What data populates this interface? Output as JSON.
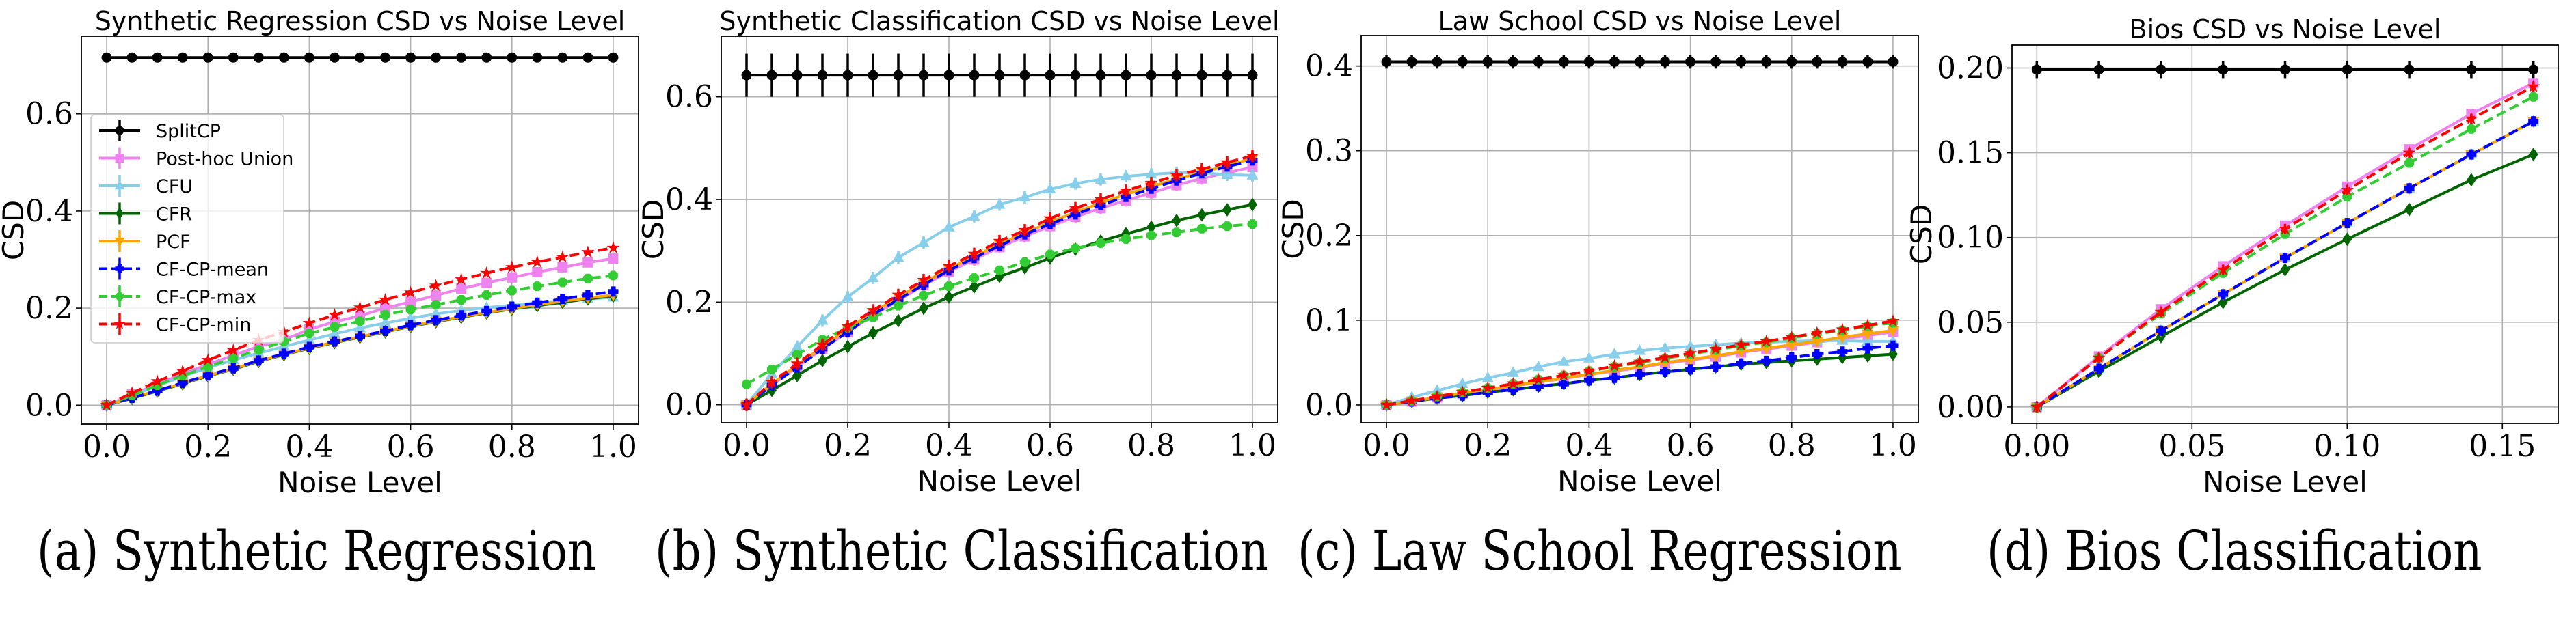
{
  "chart_data": [
    {
      "type": "line",
      "title": "Synthetic Regression CSD vs Noise Level",
      "xlabel": "Noise Level",
      "ylabel": "CSD",
      "xlim": [
        -0.05,
        1.05
      ],
      "ylim": [
        -0.039,
        0.76
      ],
      "xticks": [
        0.0,
        0.2,
        0.4,
        0.6,
        0.8,
        1.0
      ],
      "xtick_labels": [
        "0.0",
        "0.2",
        "0.4",
        "0.6",
        "0.8",
        "1.0"
      ],
      "yticks": [
        0.0,
        0.2,
        0.4,
        0.6
      ],
      "ytick_labels": [
        "0.0",
        "0.2",
        "0.4",
        "0.6"
      ],
      "grid": true,
      "legend": "center-left",
      "caption": "(a) Synthetic Regression",
      "x": [
        0.0,
        0.05,
        0.1,
        0.15,
        0.2,
        0.25,
        0.3,
        0.35,
        0.4,
        0.45,
        0.5,
        0.55,
        0.6,
        0.65,
        0.7,
        0.75,
        0.8,
        0.85,
        0.9,
        0.95,
        1.0
      ],
      "series": [
        {
          "name": "SplitCP",
          "err": 0.004,
          "values": [
            0.716,
            0.716,
            0.716,
            0.716,
            0.716,
            0.716,
            0.716,
            0.716,
            0.716,
            0.716,
            0.716,
            0.716,
            0.716,
            0.716,
            0.716,
            0.716,
            0.716,
            0.716,
            0.716,
            0.716,
            0.716
          ]
        },
        {
          "name": "Post-hoc Union",
          "err": 0.003,
          "values": [
            0.0,
            0.022,
            0.043,
            0.064,
            0.084,
            0.103,
            0.121,
            0.135,
            0.156,
            0.172,
            0.184,
            0.2,
            0.213,
            0.226,
            0.24,
            0.252,
            0.263,
            0.274,
            0.284,
            0.294,
            0.302
          ]
        },
        {
          "name": "CFU",
          "err": 0.003,
          "values": [
            0.0,
            0.02,
            0.04,
            0.059,
            0.077,
            0.093,
            0.107,
            0.121,
            0.134,
            0.147,
            0.159,
            0.169,
            0.179,
            0.188,
            0.195,
            0.201,
            0.206,
            0.211,
            0.215,
            0.219,
            0.222
          ]
        },
        {
          "name": "CFR",
          "err": 0.002,
          "values": [
            0.0,
            0.014,
            0.029,
            0.044,
            0.06,
            0.074,
            0.09,
            0.104,
            0.117,
            0.129,
            0.14,
            0.151,
            0.162,
            0.172,
            0.181,
            0.19,
            0.198,
            0.205,
            0.212,
            0.219,
            0.225
          ]
        },
        {
          "name": "PCF",
          "err": 0.002,
          "values": [
            0.0,
            0.015,
            0.03,
            0.045,
            0.061,
            0.075,
            0.091,
            0.105,
            0.118,
            0.13,
            0.141,
            0.152,
            0.163,
            0.173,
            0.182,
            0.191,
            0.199,
            0.207,
            0.214,
            0.221,
            0.227
          ]
        },
        {
          "name": "CF-CP-mean",
          "err": 0.003,
          "values": [
            0.0,
            0.015,
            0.03,
            0.046,
            0.062,
            0.076,
            0.092,
            0.106,
            0.12,
            0.131,
            0.142,
            0.153,
            0.165,
            0.175,
            0.185,
            0.194,
            0.203,
            0.211,
            0.219,
            0.227,
            0.234
          ]
        },
        {
          "name": "CF-CP-max",
          "err": 0.003,
          "values": [
            0.0,
            0.02,
            0.041,
            0.061,
            0.079,
            0.097,
            0.114,
            0.131,
            0.148,
            0.161,
            0.173,
            0.186,
            0.197,
            0.207,
            0.217,
            0.227,
            0.236,
            0.245,
            0.253,
            0.261,
            0.267
          ]
        },
        {
          "name": "CF-CP-min",
          "err": 0.003,
          "values": [
            0.0,
            0.025,
            0.049,
            0.07,
            0.093,
            0.113,
            0.134,
            0.151,
            0.169,
            0.186,
            0.201,
            0.217,
            0.232,
            0.246,
            0.259,
            0.272,
            0.284,
            0.295,
            0.305,
            0.315,
            0.324
          ]
        }
      ]
    },
    {
      "type": "line",
      "title": "Synthetic Classification CSD vs Noise Level",
      "xlabel": "Noise Level",
      "ylabel": "CSD",
      "xlim": [
        -0.05,
        1.05
      ],
      "ylim": [
        -0.035,
        0.718
      ],
      "xticks": [
        0.0,
        0.2,
        0.4,
        0.6,
        0.8,
        1.0
      ],
      "xtick_labels": [
        "0.0",
        "0.2",
        "0.4",
        "0.6",
        "0.8",
        "1.0"
      ],
      "yticks": [
        0.0,
        0.2,
        0.4,
        0.6
      ],
      "ytick_labels": [
        "0.0",
        "0.2",
        "0.4",
        "0.6"
      ],
      "grid": true,
      "legend": "none",
      "caption": "(b) Synthetic Classification",
      "x": [
        0.0,
        0.05,
        0.1,
        0.15,
        0.2,
        0.25,
        0.3,
        0.35,
        0.4,
        0.45,
        0.5,
        0.55,
        0.6,
        0.65,
        0.7,
        0.75,
        0.8,
        0.85,
        0.9,
        0.95,
        1.0
      ],
      "series": [
        {
          "name": "SplitCP",
          "err": 0.042,
          "values": [
            0.642,
            0.642,
            0.642,
            0.642,
            0.642,
            0.642,
            0.642,
            0.642,
            0.642,
            0.642,
            0.642,
            0.642,
            0.642,
            0.642,
            0.642,
            0.642,
            0.642,
            0.642,
            0.642,
            0.642,
            0.642
          ]
        },
        {
          "name": "Post-hoc Union",
          "err": 0.012,
          "values": [
            0.0,
            0.038,
            0.074,
            0.109,
            0.142,
            0.174,
            0.203,
            0.233,
            0.259,
            0.283,
            0.307,
            0.328,
            0.348,
            0.366,
            0.383,
            0.398,
            0.413,
            0.428,
            0.441,
            0.452,
            0.463
          ]
        },
        {
          "name": "CFU",
          "err": 0.012,
          "values": [
            0.0,
            0.06,
            0.113,
            0.164,
            0.21,
            0.247,
            0.287,
            0.316,
            0.346,
            0.367,
            0.39,
            0.404,
            0.42,
            0.431,
            0.439,
            0.445,
            0.449,
            0.452,
            0.452,
            0.448,
            0.447
          ]
        },
        {
          "name": "CFR",
          "err": 0.005,
          "values": [
            0.0,
            0.028,
            0.057,
            0.086,
            0.113,
            0.14,
            0.164,
            0.188,
            0.21,
            0.23,
            0.25,
            0.267,
            0.286,
            0.303,
            0.319,
            0.333,
            0.346,
            0.359,
            0.37,
            0.38,
            0.39
          ]
        },
        {
          "name": "PCF",
          "err": 0.008,
          "values": [
            0.0,
            0.041,
            0.077,
            0.113,
            0.148,
            0.18,
            0.21,
            0.238,
            0.265,
            0.289,
            0.313,
            0.334,
            0.356,
            0.375,
            0.393,
            0.41,
            0.425,
            0.44,
            0.453,
            0.466,
            0.48
          ]
        },
        {
          "name": "CF-CP-mean",
          "err": 0.008,
          "values": [
            0.0,
            0.038,
            0.073,
            0.109,
            0.142,
            0.176,
            0.205,
            0.234,
            0.262,
            0.286,
            0.31,
            0.332,
            0.352,
            0.371,
            0.389,
            0.405,
            0.421,
            0.437,
            0.451,
            0.464,
            0.476
          ]
        },
        {
          "name": "CF-CP-max",
          "err": 0.008,
          "values": [
            0.04,
            0.069,
            0.098,
            0.127,
            0.15,
            0.17,
            0.193,
            0.213,
            0.231,
            0.247,
            0.262,
            0.278,
            0.293,
            0.305,
            0.315,
            0.323,
            0.33,
            0.336,
            0.343,
            0.348,
            0.352
          ]
        },
        {
          "name": "CF-CP-min",
          "err": 0.012,
          "values": [
            0.0,
            0.044,
            0.08,
            0.117,
            0.153,
            0.184,
            0.214,
            0.243,
            0.27,
            0.294,
            0.319,
            0.34,
            0.363,
            0.383,
            0.4,
            0.417,
            0.432,
            0.447,
            0.459,
            0.472,
            0.485
          ]
        }
      ]
    },
    {
      "type": "line",
      "title": "Law School CSD vs Noise Level",
      "xlabel": "Noise Level",
      "ylabel": "CSD",
      "xlim": [
        -0.05,
        1.05
      ],
      "ylim": [
        -0.021,
        0.436
      ],
      "xticks": [
        0.0,
        0.2,
        0.4,
        0.6,
        0.8,
        1.0
      ],
      "xtick_labels": [
        "0.0",
        "0.2",
        "0.4",
        "0.6",
        "0.8",
        "1.0"
      ],
      "yticks": [
        0.0,
        0.1,
        0.2,
        0.3,
        0.4
      ],
      "ytick_labels": [
        "0.0",
        "0.1",
        "0.2",
        "0.3",
        "0.4"
      ],
      "grid": true,
      "legend": "none",
      "caption": "(c) Law School Regression",
      "x": [
        0.0,
        0.05,
        0.1,
        0.15,
        0.2,
        0.25,
        0.3,
        0.35,
        0.4,
        0.45,
        0.5,
        0.55,
        0.6,
        0.65,
        0.7,
        0.75,
        0.8,
        0.85,
        0.9,
        0.95,
        1.0
      ],
      "series": [
        {
          "name": "SplitCP",
          "err": 0.008,
          "values": [
            0.405,
            0.405,
            0.405,
            0.405,
            0.405,
            0.405,
            0.405,
            0.405,
            0.405,
            0.405,
            0.405,
            0.405,
            0.405,
            0.405,
            0.405,
            0.405,
            0.405,
            0.405,
            0.405,
            0.405,
            0.405
          ]
        },
        {
          "name": "Post-hoc Union",
          "err": 0.002,
          "values": [
            0.0,
            0.004,
            0.009,
            0.013,
            0.018,
            0.022,
            0.027,
            0.031,
            0.036,
            0.04,
            0.044,
            0.049,
            0.053,
            0.057,
            0.062,
            0.066,
            0.07,
            0.074,
            0.078,
            0.082,
            0.086
          ]
        },
        {
          "name": "CFU",
          "err": 0.001,
          "values": [
            0.0,
            0.009,
            0.017,
            0.025,
            0.032,
            0.038,
            0.045,
            0.051,
            0.055,
            0.06,
            0.064,
            0.067,
            0.069,
            0.071,
            0.073,
            0.074,
            0.075,
            0.076,
            0.076,
            0.075,
            0.075
          ]
        },
        {
          "name": "CFR",
          "err": 0.001,
          "values": [
            0.0,
            0.004,
            0.008,
            0.011,
            0.015,
            0.018,
            0.022,
            0.025,
            0.029,
            0.032,
            0.036,
            0.039,
            0.042,
            0.045,
            0.048,
            0.05,
            0.052,
            0.054,
            0.056,
            0.058,
            0.06
          ]
        },
        {
          "name": "PCF",
          "err": 0.002,
          "values": [
            0.0,
            0.004,
            0.009,
            0.014,
            0.018,
            0.023,
            0.027,
            0.032,
            0.036,
            0.041,
            0.045,
            0.05,
            0.054,
            0.058,
            0.063,
            0.067,
            0.071,
            0.075,
            0.08,
            0.084,
            0.088
          ]
        },
        {
          "name": "CF-CP-mean",
          "err": 0.002,
          "values": [
            0.0,
            0.004,
            0.008,
            0.011,
            0.015,
            0.018,
            0.022,
            0.025,
            0.029,
            0.032,
            0.036,
            0.039,
            0.042,
            0.045,
            0.049,
            0.052,
            0.056,
            0.06,
            0.063,
            0.067,
            0.07
          ]
        },
        {
          "name": "CF-CP-max",
          "err": 0.002,
          "values": [
            0.0,
            0.005,
            0.01,
            0.015,
            0.02,
            0.025,
            0.03,
            0.035,
            0.04,
            0.045,
            0.05,
            0.055,
            0.06,
            0.065,
            0.07,
            0.074,
            0.079,
            0.084,
            0.088,
            0.093,
            0.097
          ]
        },
        {
          "name": "CF-CP-min",
          "err": 0.002,
          "values": [
            0.0,
            0.005,
            0.01,
            0.015,
            0.02,
            0.025,
            0.03,
            0.035,
            0.04,
            0.046,
            0.051,
            0.056,
            0.061,
            0.066,
            0.071,
            0.075,
            0.08,
            0.085,
            0.089,
            0.094,
            0.099
          ]
        }
      ]
    },
    {
      "type": "line",
      "title": "Bios CSD vs Noise Level",
      "xlabel": "Noise Level",
      "ylabel": "CSD",
      "xlim": [
        -0.008,
        0.168
      ],
      "ylim": [
        -0.0097,
        0.2135
      ],
      "xticks": [
        0.0,
        0.05,
        0.1,
        0.15
      ],
      "xtick_labels": [
        "0.00",
        "0.05",
        "0.10",
        "0.15"
      ],
      "yticks": [
        0.0,
        0.05,
        0.1,
        0.15,
        0.2
      ],
      "ytick_labels": [
        "0.00",
        "0.05",
        "0.10",
        "0.15",
        "0.20"
      ],
      "grid": true,
      "legend": "none",
      "caption": "(d) Bios Classification",
      "x": [
        0.0,
        0.02,
        0.04,
        0.06,
        0.08,
        0.1,
        0.12,
        0.14,
        0.16
      ],
      "series": [
        {
          "name": "SplitCP",
          "err": 0.005,
          "values": [
            0.199,
            0.199,
            0.199,
            0.199,
            0.199,
            0.199,
            0.199,
            0.199,
            0.199
          ]
        },
        {
          "name": "Post-hoc Union",
          "err": 0.002,
          "values": [
            0.0,
            0.0298,
            0.0577,
            0.083,
            0.107,
            0.13,
            0.152,
            0.173,
            0.191
          ]
        },
        {
          "name": "CFU",
          "err": 0.002,
          "values": [
            0.0,
            0.0226,
            0.045,
            0.0665,
            0.088,
            0.1085,
            0.129,
            0.149,
            0.1685
          ]
        },
        {
          "name": "CFR",
          "err": 0.003,
          "values": [
            0.0,
            0.021,
            0.0415,
            0.0617,
            0.081,
            0.099,
            0.1165,
            0.134,
            0.149
          ]
        },
        {
          "name": "PCF",
          "err": 0.002,
          "values": [
            0.0,
            0.0226,
            0.045,
            0.0665,
            0.088,
            0.1085,
            0.129,
            0.149,
            0.1685
          ]
        },
        {
          "name": "CF-CP-mean",
          "err": 0.003,
          "values": [
            0.0,
            0.0226,
            0.045,
            0.0665,
            0.088,
            0.1085,
            0.129,
            0.149,
            0.1685
          ]
        },
        {
          "name": "CF-CP-max",
          "err": 0.002,
          "values": [
            0.0,
            0.029,
            0.055,
            0.079,
            0.102,
            0.124,
            0.144,
            0.164,
            0.183
          ]
        },
        {
          "name": "CF-CP-min",
          "err": 0.003,
          "values": [
            0.0,
            0.029,
            0.056,
            0.081,
            0.105,
            0.128,
            0.15,
            0.17,
            0.189
          ]
        }
      ]
    }
  ],
  "series_styles": [
    {
      "name": "SplitCP",
      "color": "#000000",
      "dash": "solid",
      "marker": "circle"
    },
    {
      "name": "Post-hoc Union",
      "color": "#ee82ee",
      "dash": "solid",
      "marker": "square"
    },
    {
      "name": "CFU",
      "color": "#87ceeb",
      "dash": "solid",
      "marker": "triangle"
    },
    {
      "name": "CFR",
      "color": "#006400",
      "dash": "solid",
      "marker": "diamond"
    },
    {
      "name": "PCF",
      "color": "#ffa500",
      "dash": "solid",
      "marker": "triangle-down"
    },
    {
      "name": "CF-CP-mean",
      "color": "#0000ff",
      "dash": "dashed",
      "marker": "plus"
    },
    {
      "name": "CF-CP-max",
      "color": "#32cd32",
      "dash": "dashed",
      "marker": "octagon"
    },
    {
      "name": "CF-CP-min",
      "color": "#ff0000",
      "dash": "dashed",
      "marker": "star"
    }
  ]
}
